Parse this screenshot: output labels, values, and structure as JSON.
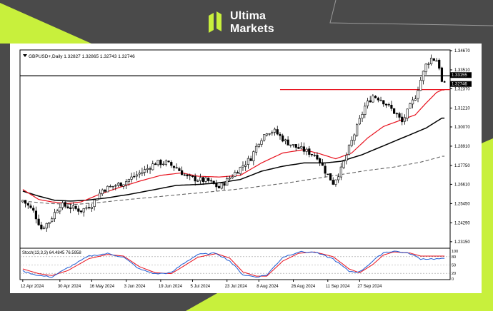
{
  "brand": {
    "line1": "Ultima",
    "line2": "Markets",
    "logo_icon": "ultima-markets-logo-icon",
    "colors": {
      "accent": "#c8f03c",
      "background": "#4a4a4a"
    }
  },
  "chart_data": {
    "type": "candlestick",
    "header": "GBPUSD+,Daily  1.32827 1.32865 1.32743 1.32746",
    "symbol": "GBPUSD+",
    "timeframe": "Daily",
    "ohlc_last": {
      "open": 1.32827,
      "high": 1.32865,
      "low": 1.32743,
      "close": 1.32746
    },
    "y_range": [
      1.228,
      1.3467
    ],
    "y_ticks": [
      "1.34670",
      "1.33510",
      "1.32370",
      "1.31210",
      "1.30070",
      "1.28910",
      "1.27750",
      "1.26610",
      "1.25450",
      "1.24290",
      "1.23150"
    ],
    "x_ticks": [
      "12 Apr 2024",
      "30 Apr 2024",
      "16 May 2024",
      "3 Jun 2024",
      "19 Jun 2024",
      "5 Jul 2024",
      "23 Jul 2024",
      "8 Aug 2024",
      "26 Aug 2024",
      "11 Sep 2024",
      "27 Sep 2024"
    ],
    "price_labels": [
      {
        "text": "1.33155",
        "value": 1.33155,
        "line": "black"
      },
      {
        "text": "1.32746",
        "value": 1.32746,
        "line": "none"
      }
    ],
    "horizontal_lines": [
      {
        "value": 1.33155,
        "color": "#000000"
      },
      {
        "value": 1.3232,
        "color": "#e8121e",
        "start_index": 97
      }
    ],
    "colors": {
      "ma_fast": "#e8121e",
      "ma_mid": "#000000",
      "ma_slow": "#666666",
      "stoch_main": "#1e5ad2",
      "stoch_signal": "#e8121e"
    },
    "stochastic": {
      "label": "Stoch(13,3,3) 64.4845 76.5958",
      "ticks": [
        "100",
        "80",
        "50",
        "20",
        "0"
      ],
      "levels": [
        80,
        50,
        20
      ],
      "main_anchors": [
        [
          0,
          28
        ],
        [
          6,
          12
        ],
        [
          11,
          7
        ],
        [
          17,
          40
        ],
        [
          25,
          82
        ],
        [
          32,
          91
        ],
        [
          38,
          78
        ],
        [
          44,
          35
        ],
        [
          50,
          18
        ],
        [
          56,
          22
        ],
        [
          60,
          52
        ],
        [
          66,
          88
        ],
        [
          73,
          92
        ],
        [
          78,
          65
        ],
        [
          83,
          15
        ],
        [
          88,
          7
        ],
        [
          92,
          14
        ],
        [
          98,
          78
        ],
        [
          104,
          97
        ],
        [
          110,
          96
        ],
        [
          117,
          72
        ],
        [
          123,
          27
        ],
        [
          127,
          25
        ],
        [
          132,
          64
        ],
        [
          136,
          95
        ],
        [
          140,
          100
        ],
        [
          146,
          91
        ],
        [
          150,
          72
        ]
      ],
      "signal_anchors": [
        [
          0,
          36
        ],
        [
          6,
          19
        ],
        [
          11,
          12
        ],
        [
          17,
          30
        ],
        [
          25,
          73
        ],
        [
          32,
          88
        ],
        [
          38,
          82
        ],
        [
          44,
          44
        ],
        [
          50,
          22
        ],
        [
          56,
          19
        ],
        [
          60,
          42
        ],
        [
          66,
          78
        ],
        [
          73,
          91
        ],
        [
          78,
          75
        ],
        [
          83,
          25
        ],
        [
          88,
          10
        ],
        [
          92,
          10
        ],
        [
          98,
          64
        ],
        [
          104,
          92
        ],
        [
          110,
          97
        ],
        [
          117,
          80
        ],
        [
          123,
          36
        ],
        [
          127,
          22
        ],
        [
          132,
          52
        ],
        [
          136,
          86
        ],
        [
          140,
          97
        ],
        [
          146,
          93
        ],
        [
          150,
          82
        ]
      ]
    },
    "price_anchors": [
      [
        0,
        1.2565
      ],
      [
        4,
        1.2498
      ],
      [
        7,
        1.2395
      ],
      [
        10,
        1.2438
      ],
      [
        14,
        1.2538
      ],
      [
        18,
        1.2522
      ],
      [
        22,
        1.2503
      ],
      [
        26,
        1.254
      ],
      [
        30,
        1.2628
      ],
      [
        34,
        1.265
      ],
      [
        38,
        1.267
      ],
      [
        42,
        1.271
      ],
      [
        46,
        1.2745
      ],
      [
        50,
        1.279
      ],
      [
        54,
        1.279
      ],
      [
        58,
        1.276
      ],
      [
        62,
        1.2703
      ],
      [
        66,
        1.269
      ],
      [
        70,
        1.268
      ],
      [
        74,
        1.264
      ],
      [
        78,
        1.27
      ],
      [
        82,
        1.276
      ],
      [
        86,
        1.282
      ],
      [
        89,
        1.292
      ],
      [
        92,
        1.298
      ],
      [
        95,
        1.298
      ],
      [
        99,
        1.292
      ],
      [
        103,
        1.2885
      ],
      [
        107,
        1.286
      ],
      [
        111,
        1.283
      ],
      [
        114,
        1.274
      ],
      [
        117,
        1.267
      ],
      [
        120,
        1.275
      ],
      [
        123,
        1.288
      ],
      [
        126,
        1.3005
      ],
      [
        129,
        1.313
      ],
      [
        132,
        1.3195
      ],
      [
        135,
        1.3175
      ],
      [
        138,
        1.313
      ],
      [
        141,
        1.308
      ],
      [
        143,
        1.3035
      ],
      [
        146,
        1.313
      ],
      [
        148,
        1.319
      ],
      [
        150,
        1.329
      ],
      [
        152,
        1.338
      ],
      [
        154,
        1.342
      ],
      [
        156,
        1.341
      ],
      [
        157,
        1.337
      ],
      [
        158,
        1.3275
      ]
    ],
    "ma_fast_anchors": [
      [
        0,
        1.263
      ],
      [
        6,
        1.257
      ],
      [
        11,
        1.2555
      ],
      [
        17,
        1.2545
      ],
      [
        22,
        1.2555
      ],
      [
        28,
        1.2595
      ],
      [
        36,
        1.264
      ],
      [
        44,
        1.268
      ],
      [
        52,
        1.2715
      ],
      [
        60,
        1.273
      ],
      [
        66,
        1.271
      ],
      [
        74,
        1.2705
      ],
      [
        82,
        1.2715
      ],
      [
        90,
        1.279
      ],
      [
        98,
        1.285
      ],
      [
        106,
        1.287
      ],
      [
        112,
        1.2845
      ],
      [
        118,
        1.2815
      ],
      [
        124,
        1.285
      ],
      [
        130,
        1.294
      ],
      [
        136,
        1.301
      ],
      [
        142,
        1.3045
      ],
      [
        148,
        1.308
      ],
      [
        152,
        1.315
      ],
      [
        156,
        1.3215
      ],
      [
        158,
        1.323
      ]
    ],
    "ma_mid_anchors": [
      [
        0,
        1.262
      ],
      [
        6,
        1.259
      ],
      [
        12,
        1.2565
      ],
      [
        18,
        1.256
      ],
      [
        24,
        1.2565
      ],
      [
        32,
        1.258
      ],
      [
        40,
        1.26
      ],
      [
        50,
        1.263
      ],
      [
        58,
        1.2655
      ],
      [
        66,
        1.266
      ],
      [
        74,
        1.267
      ],
      [
        82,
        1.269
      ],
      [
        90,
        1.274
      ],
      [
        98,
        1.277
      ],
      [
        106,
        1.279
      ],
      [
        114,
        1.279
      ],
      [
        120,
        1.28
      ],
      [
        128,
        1.284
      ],
      [
        134,
        1.288
      ],
      [
        140,
        1.292
      ],
      [
        146,
        1.296
      ],
      [
        152,
        1.3
      ],
      [
        156,
        1.304
      ],
      [
        158,
        1.306
      ]
    ],
    "ma_slow_anchors": [
      [
        0,
        1.256
      ],
      [
        10,
        1.2545
      ],
      [
        20,
        1.254
      ],
      [
        30,
        1.2553
      ],
      [
        40,
        1.257
      ],
      [
        50,
        1.2585
      ],
      [
        60,
        1.26
      ],
      [
        70,
        1.2615
      ],
      [
        80,
        1.263
      ],
      [
        90,
        1.265
      ],
      [
        100,
        1.267
      ],
      [
        110,
        1.2695
      ],
      [
        120,
        1.272
      ],
      [
        130,
        1.2745
      ],
      [
        140,
        1.2765
      ],
      [
        150,
        1.2795
      ],
      [
        156,
        1.282
      ],
      [
        158,
        1.283
      ]
    ]
  }
}
